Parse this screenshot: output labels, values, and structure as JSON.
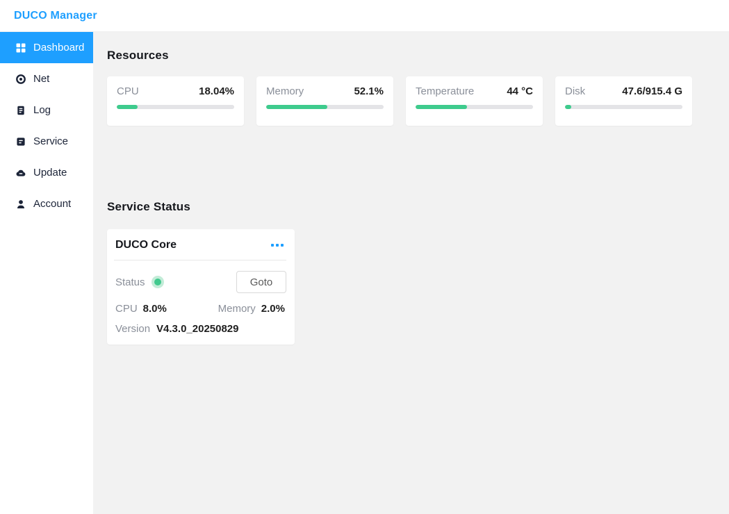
{
  "header": {
    "title": "DUCO Manager"
  },
  "sidebar": {
    "items": [
      {
        "label": "Dashboard",
        "icon": "grid-icon",
        "active": true
      },
      {
        "label": "Net",
        "icon": "target-icon",
        "active": false
      },
      {
        "label": "Log",
        "icon": "clipboard-icon",
        "active": false
      },
      {
        "label": "Service",
        "icon": "server-icon",
        "active": false
      },
      {
        "label": "Update",
        "icon": "cloud-icon",
        "active": false
      },
      {
        "label": "Account",
        "icon": "user-icon",
        "active": false
      }
    ]
  },
  "resources": {
    "title": "Resources",
    "cards": [
      {
        "label": "CPU",
        "value": "18.04%",
        "percent": 18.04
      },
      {
        "label": "Memory",
        "value": "52.1%",
        "percent": 52.1
      },
      {
        "label": "Temperature",
        "value": "44 °C",
        "percent": 44
      },
      {
        "label": "Disk",
        "value": "47.6/915.4 G",
        "percent": 5.2
      }
    ]
  },
  "service_status": {
    "title": "Service Status",
    "card": {
      "name": "DUCO Core",
      "status_label": "Status",
      "status_state": "running",
      "goto_label": "Goto",
      "cpu_label": "CPU",
      "cpu_value": "8.0%",
      "memory_label": "Memory",
      "memory_value": "2.0%",
      "version_label": "Version",
      "version_value": "V4.3.0_20250829"
    }
  },
  "colors": {
    "accent_blue": "#1e9fff",
    "progress_green": "#3ecb8d",
    "status_green": "#41c98e",
    "main_background": "#f2f2f2"
  }
}
